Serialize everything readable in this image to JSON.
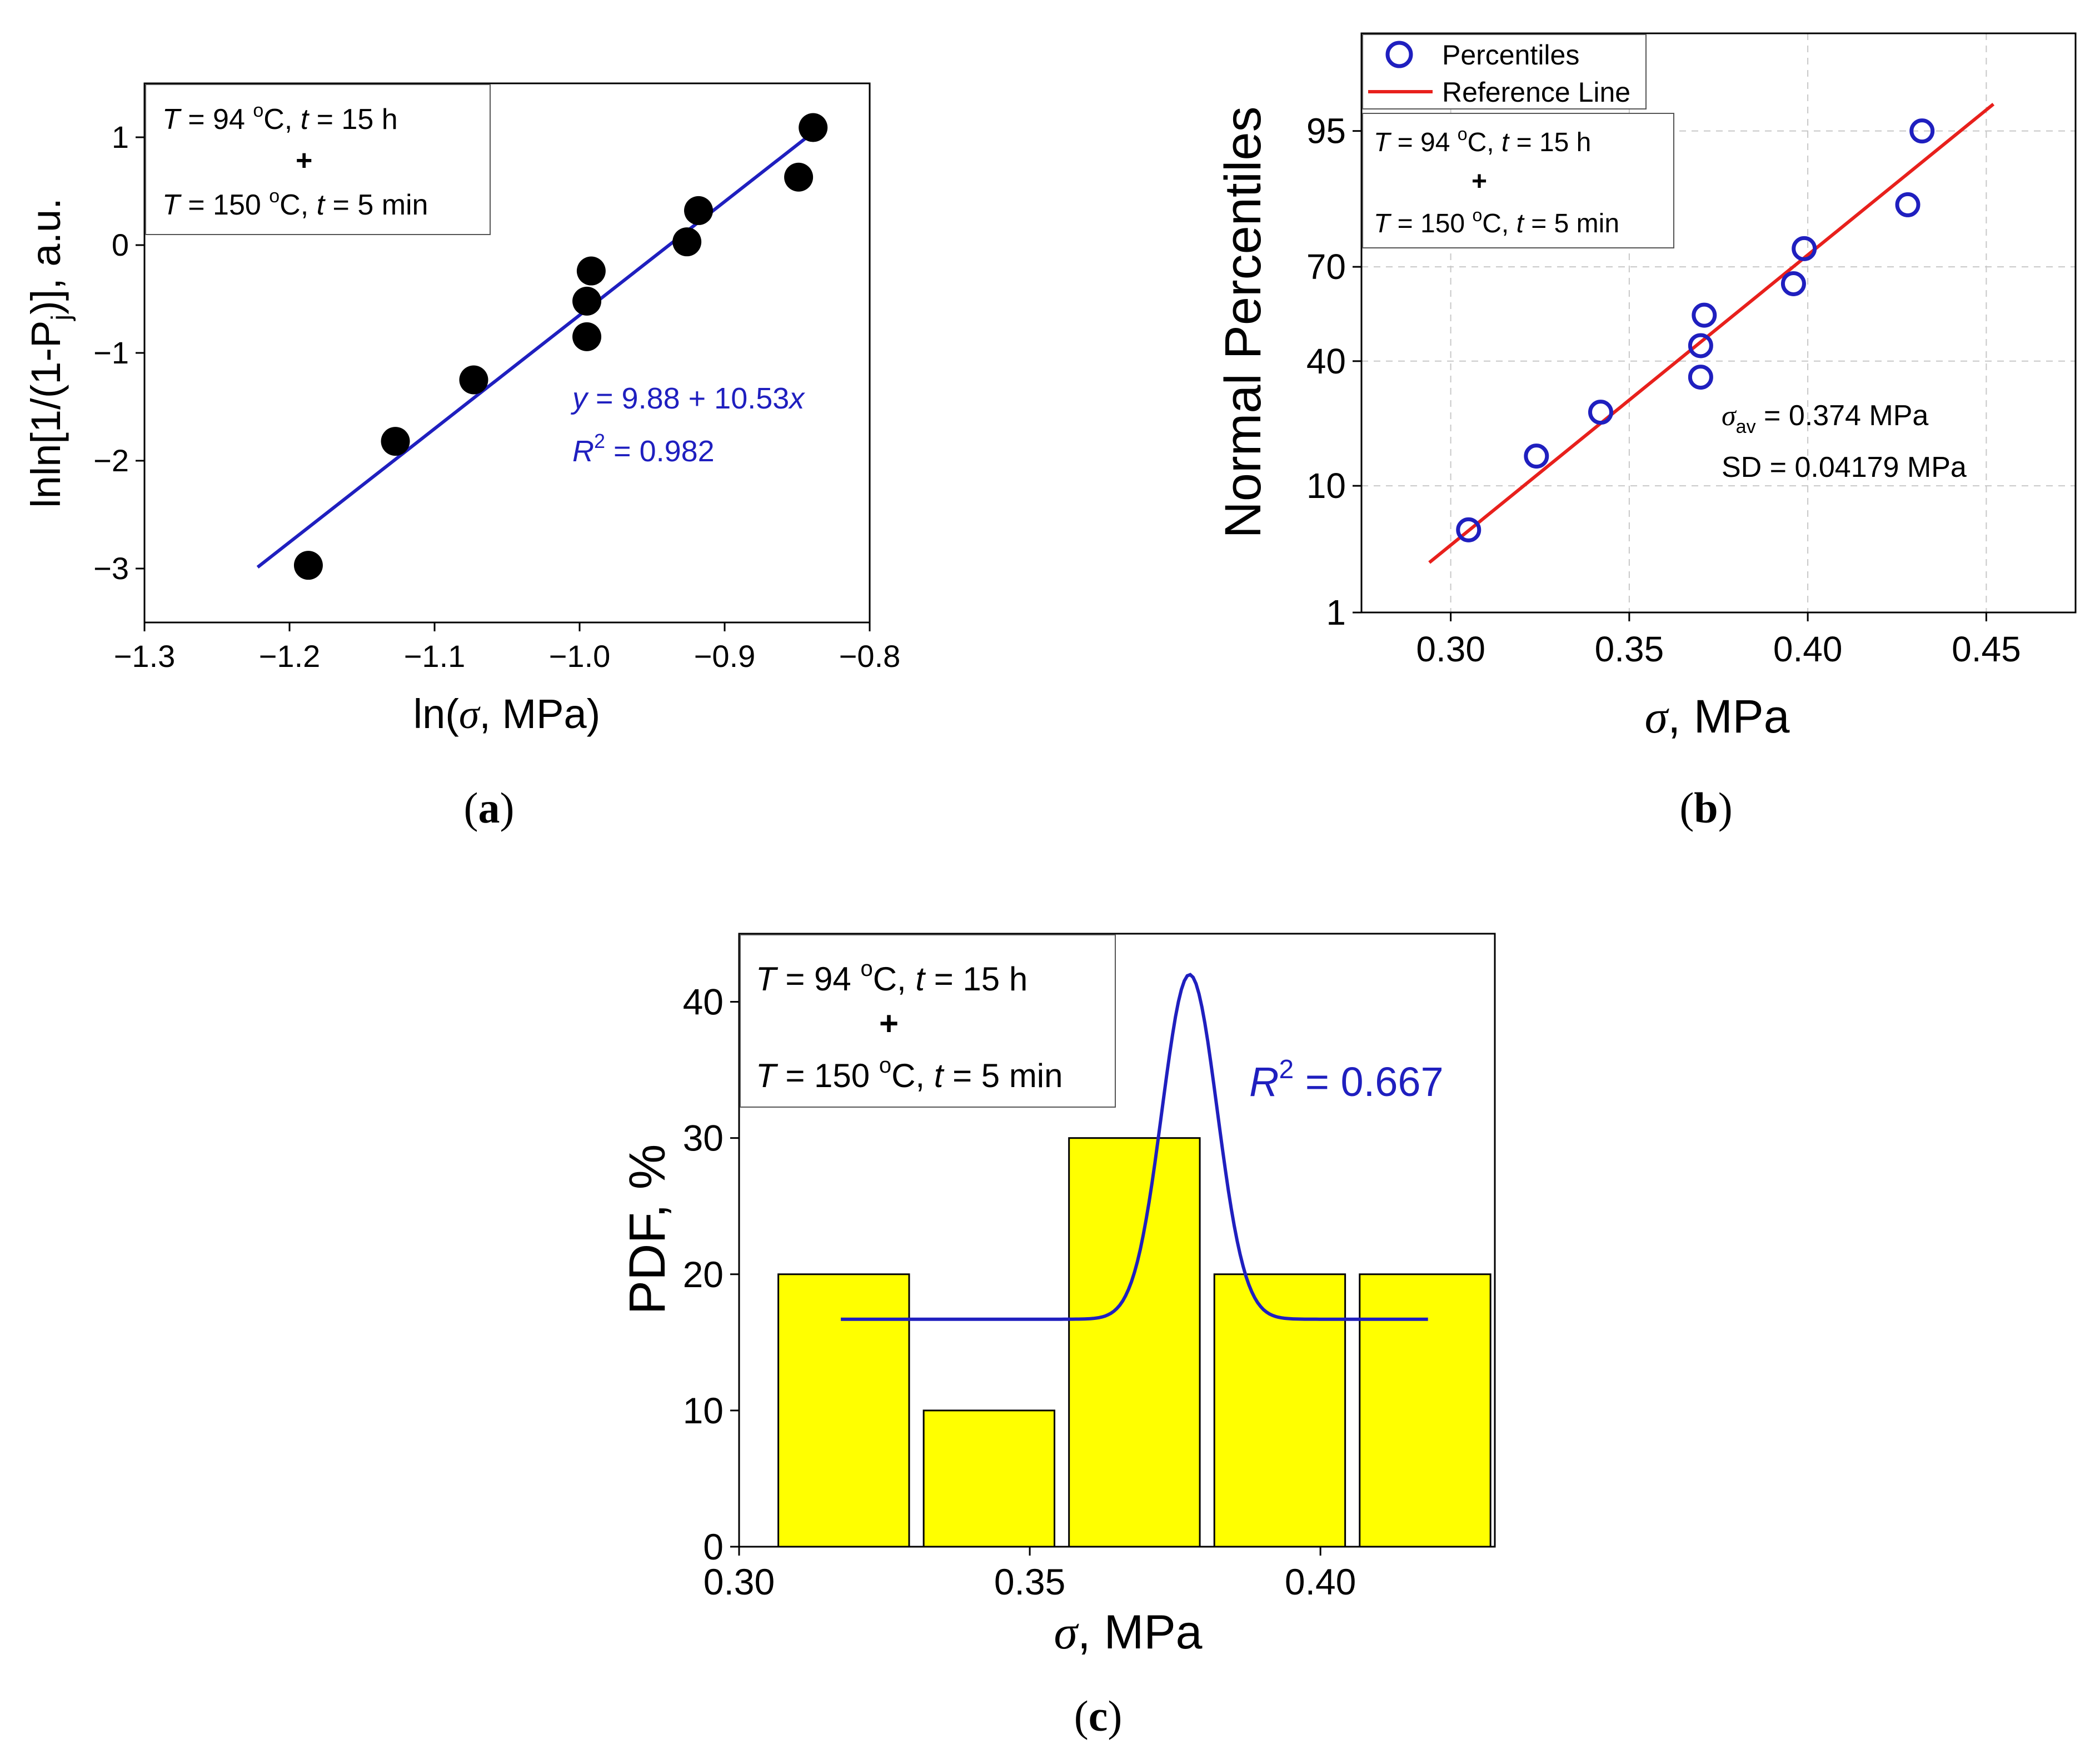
{
  "colors": {
    "axis": "#000000",
    "blue": "#1f1fbf",
    "red": "#e8201c",
    "bar_fill": "#ffff00",
    "dot": "#000000",
    "grid": "#c8c8c8"
  },
  "conditions": {
    "line1": {
      "T_sym": "T",
      "eq1": " = 94 ",
      "deg": "o",
      "unit1": "C, ",
      "t_sym": "t",
      "eq2": " = 15 h"
    },
    "plus": "+",
    "line2": {
      "T_sym": "T",
      "eq1": " = 150 ",
      "deg": "o",
      "unit1": "C, ",
      "t_sym": "t",
      "eq2": " = 5 min"
    }
  },
  "panels": {
    "a": {
      "label_open": "(",
      "letter": "a",
      "label_close": ")"
    },
    "b": {
      "label_open": "(",
      "letter": "b",
      "label_close": ")"
    },
    "c": {
      "label_open": "(",
      "letter": "c",
      "label_close": ")"
    }
  },
  "chart_data": [
    {
      "id": "a",
      "type": "scatter",
      "title": "",
      "xlabel": {
        "pre": "ln(",
        "sym": "σ",
        "post": ", MPa)"
      },
      "ylabel": {
        "pre": "lnln[1/(1-P",
        "sub": "j",
        "post": ")], a.u."
      },
      "xlim": [
        -1.3,
        -0.8
      ],
      "ylim": [
        -3.5,
        1.5
      ],
      "xticks": [
        -1.3,
        -1.2,
        -1.1,
        -1.0,
        -0.9,
        -0.8
      ],
      "xtick_labels": [
        "−1.3",
        "−1.2",
        "−1.1",
        "−1.0",
        "−0.9",
        "−0.8"
      ],
      "yticks": [
        -3,
        -2,
        -1,
        0,
        1
      ],
      "ytick_labels": [
        "−3",
        "−2",
        "−1",
        "0",
        "1"
      ],
      "points": [
        {
          "x": -1.187,
          "y": -2.97
        },
        {
          "x": -1.127,
          "y": -1.82
        },
        {
          "x": -1.073,
          "y": -1.25
        },
        {
          "x": -0.995,
          "y": -0.85
        },
        {
          "x": -0.995,
          "y": -0.52
        },
        {
          "x": -0.992,
          "y": -0.24
        },
        {
          "x": -0.926,
          "y": 0.03
        },
        {
          "x": -0.918,
          "y": 0.32
        },
        {
          "x": -0.849,
          "y": 0.63
        },
        {
          "x": -0.839,
          "y": 1.09
        }
      ],
      "fit": {
        "intercept": 9.88,
        "slope": 10.53,
        "x_range": [
          -1.222,
          -0.832
        ]
      },
      "fit_equation": {
        "y": "y",
        "eq": " = 9.88 + 10.53",
        "x": "x"
      },
      "r_squared": {
        "R": "R",
        "sup": "2",
        "eq": " = 0.982"
      }
    },
    {
      "id": "b",
      "type": "scatter",
      "title": "",
      "xlabel": {
        "sym": "σ",
        "post": ", MPa"
      },
      "ylabel": "Normal Percentiles",
      "xlim": [
        0.275,
        0.475
      ],
      "xticks": [
        0.3,
        0.35,
        0.4,
        0.45
      ],
      "xtick_labels": [
        "0.30",
        "0.35",
        "0.40",
        "0.45"
      ],
      "y_scale": "normal-probability",
      "yticks": [
        1,
        10,
        40,
        70,
        95
      ],
      "ytick_labels": [
        "1",
        "10",
        "40",
        "70",
        "95"
      ],
      "grid": true,
      "legend": {
        "position": "top-left",
        "entries": [
          "Percentiles",
          "Reference Line"
        ]
      },
      "points": [
        {
          "x": 0.305,
          "y": 5
        },
        {
          "x": 0.324,
          "y": 15
        },
        {
          "x": 0.342,
          "y": 25
        },
        {
          "x": 0.37,
          "y": 35
        },
        {
          "x": 0.37,
          "y": 45
        },
        {
          "x": 0.371,
          "y": 55
        },
        {
          "x": 0.396,
          "y": 65
        },
        {
          "x": 0.399,
          "y": 75
        },
        {
          "x": 0.428,
          "y": 85
        },
        {
          "x": 0.432,
          "y": 95
        }
      ],
      "reference_line": {
        "mean": 0.374,
        "sd": 0.04179,
        "x_range": [
          0.294,
          0.452
        ]
      },
      "stats": {
        "mean_sym": "σ",
        "mean_sub": "av",
        "mean_text": " = 0.374 MPa",
        "sd_text": "SD = 0.04179 MPa"
      }
    },
    {
      "id": "c",
      "type": "bar",
      "title": "",
      "xlabel": {
        "sym": "σ",
        "post": ", MPa"
      },
      "ylabel": "PDF, %",
      "xlim": [
        0.3,
        0.43
      ],
      "ylim": [
        0,
        45
      ],
      "xticks": [
        0.3,
        0.35,
        0.4
      ],
      "xtick_labels": [
        "0.30",
        "0.35",
        "0.40"
      ],
      "yticks": [
        0,
        10,
        20,
        30,
        40
      ],
      "ytick_labels": [
        "0",
        "10",
        "20",
        "30",
        "40"
      ],
      "bin_width": 0.025,
      "bar_centers": [
        0.318,
        0.343,
        0.368,
        0.393,
        0.418
      ],
      "values": [
        20,
        10,
        30,
        20,
        20
      ],
      "fit_curve": {
        "type": "gauss",
        "y0": 16.7,
        "xc": 0.3775,
        "w": 0.0095,
        "A": 25.3,
        "x_range": [
          0.3175,
          0.4185
        ]
      },
      "r_squared": {
        "R": "R",
        "sup": "2",
        "eq": " = 0.667"
      }
    }
  ]
}
